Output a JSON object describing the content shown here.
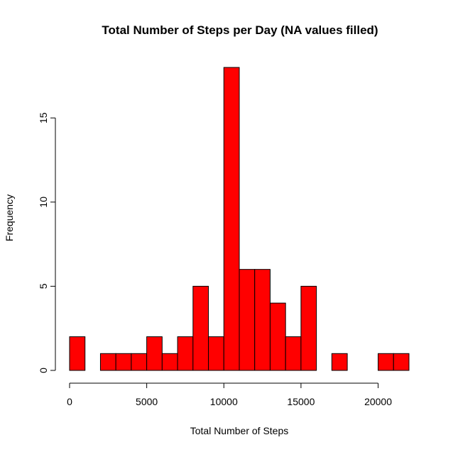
{
  "chart_data": {
    "type": "bar",
    "title": "Total Number of Steps per Day (NA values filled)",
    "xlabel": "Total Number of Steps",
    "ylabel": "Frequency",
    "bar_color": "#ff0000",
    "bin_width": 1000,
    "x": [
      0,
      1000,
      2000,
      3000,
      4000,
      5000,
      6000,
      7000,
      8000,
      9000,
      10000,
      11000,
      12000,
      13000,
      14000,
      15000,
      16000,
      17000,
      18000,
      19000,
      20000,
      21000
    ],
    "values": [
      2,
      0,
      1,
      1,
      1,
      2,
      1,
      2,
      5,
      2,
      18,
      6,
      6,
      4,
      2,
      5,
      0,
      1,
      0,
      0,
      1,
      1
    ],
    "xlim": [
      0,
      22000
    ],
    "ylim": [
      0,
      18
    ],
    "xticks": [
      0,
      5000,
      10000,
      15000,
      20000
    ],
    "xtick_labels": [
      "0",
      "5000",
      "10000",
      "15000",
      "20000"
    ],
    "yticks": [
      0,
      5,
      10,
      15
    ],
    "ytick_labels": [
      "0",
      "5",
      "10",
      "15"
    ],
    "grid": false
  }
}
